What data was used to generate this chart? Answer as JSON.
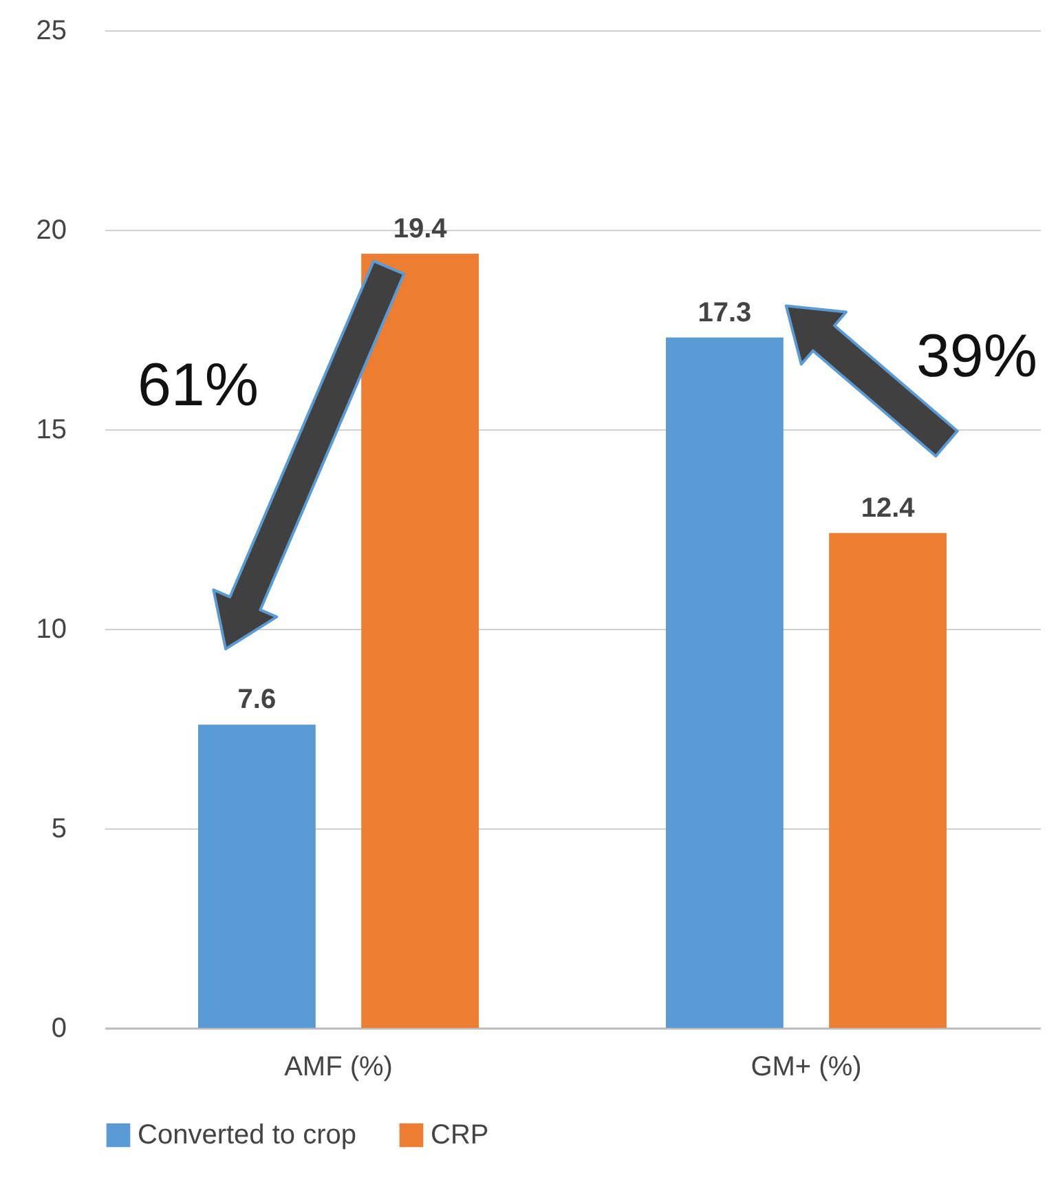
{
  "chart_data": {
    "type": "bar",
    "categories": [
      "AMF (%)",
      "GM+ (%)"
    ],
    "series": [
      {
        "name": "Converted to crop",
        "color": "#5b9bd5",
        "values": [
          7.6,
          17.3
        ]
      },
      {
        "name": "CRP",
        "color": "#ed7d31",
        "values": [
          19.4,
          12.4
        ]
      }
    ],
    "ylim": [
      0,
      25
    ],
    "yticks": [
      0,
      5,
      10,
      15,
      20,
      25
    ],
    "grid": "y",
    "legend": "bottom",
    "data_labels": true,
    "annotations": [
      "61%",
      "39%"
    ]
  }
}
